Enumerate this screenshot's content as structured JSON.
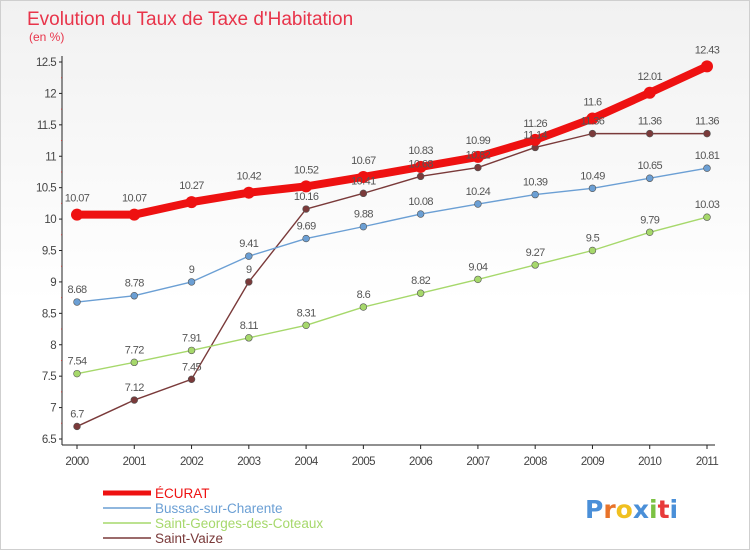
{
  "chart_data": {
    "type": "line",
    "title": "Evolution du Taux de Taxe d'Habitation",
    "subtitle": "(en %)",
    "x": [
      "2000",
      "2001",
      "2002",
      "2003",
      "2004",
      "2005",
      "2006",
      "2007",
      "2008",
      "2009",
      "2010",
      "2011"
    ],
    "ylim": [
      6.5,
      12.5
    ],
    "yticks": [
      "6.5",
      "7",
      "7.5",
      "8",
      "8.5",
      "9",
      "9.5",
      "10",
      "10.5",
      "11",
      "11.5",
      "12",
      "12.5"
    ],
    "grid": false,
    "legend_position": "bottom-left",
    "series": [
      {
        "name": "ÉCURAT",
        "color": "#ee1111",
        "values": [
          10.07,
          10.07,
          10.27,
          10.42,
          10.52,
          10.67,
          10.83,
          10.99,
          11.26,
          11.6,
          12.01,
          12.43
        ],
        "labels": [
          "10.07",
          "10.07",
          "10.27",
          "10.42",
          "10.52",
          "10.67",
          "10.83",
          "10.99",
          "11.26",
          "11.6",
          "12.01",
          "12.43"
        ]
      },
      {
        "name": "Bussac-sur-Charente",
        "color": "#6b9fd4",
        "values": [
          8.68,
          8.78,
          9,
          9.41,
          9.69,
          9.88,
          10.08,
          10.24,
          10.39,
          10.49,
          10.65,
          10.81
        ],
        "labels": [
          "8.68",
          "8.78",
          "9",
          "9.41",
          "9.69",
          "9.88",
          "10.08",
          "10.24",
          "10.39",
          "10.49",
          "10.65",
          "10.81"
        ]
      },
      {
        "name": "Saint-Georges-des-Coteaux",
        "color": "#a6d86b",
        "values": [
          7.54,
          7.72,
          7.91,
          8.11,
          8.31,
          8.6,
          8.82,
          9.04,
          9.27,
          9.5,
          9.79,
          10.03
        ],
        "labels": [
          "7.54",
          "7.72",
          "7.91",
          "8.11",
          "8.31",
          "8.6",
          "8.82",
          "9.04",
          "9.27",
          "9.5",
          "9.79",
          "10.03"
        ]
      },
      {
        "name": "Saint-Vaize",
        "color": "#7a3a3a",
        "values": [
          6.7,
          7.12,
          7.45,
          9,
          10.16,
          10.41,
          10.68,
          10.82,
          11.14,
          11.36,
          11.36,
          11.36
        ],
        "labels": [
          "6.7",
          "7.12",
          "7.45",
          "9",
          "10.16",
          "10.41",
          "10.68",
          "10.82",
          "11.14",
          "11.36",
          "11.36",
          "11.36"
        ]
      }
    ]
  },
  "brand": {
    "letters": [
      "P",
      "r",
      "o",
      "x",
      "i",
      "t",
      "i"
    ],
    "colors": [
      "#4a8fd8",
      "#e8732a",
      "#f0c020",
      "#4a8fd8",
      "#7cc243",
      "#e83a3a",
      "#4a8fd8"
    ]
  }
}
